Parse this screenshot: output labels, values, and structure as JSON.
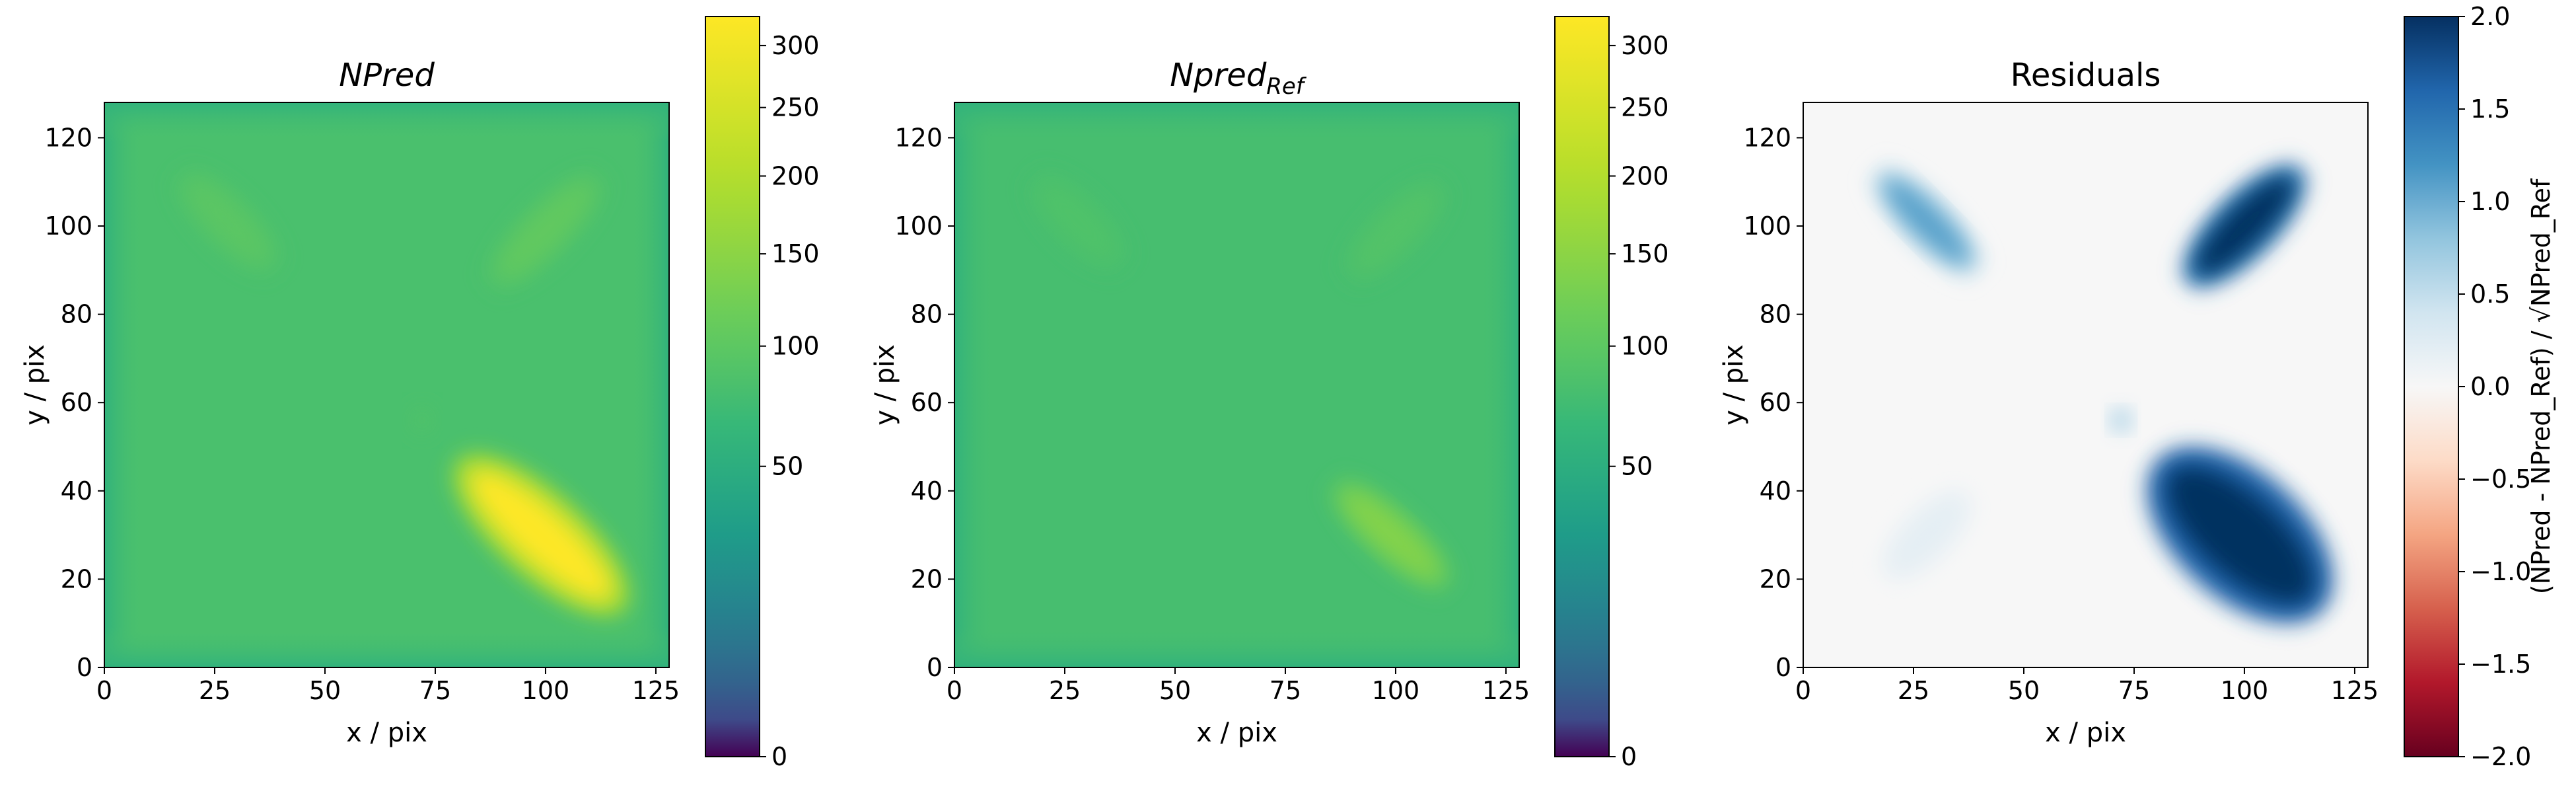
{
  "colors": {
    "viridis": [
      "#440154",
      "#482878",
      "#3e4a89",
      "#31688e",
      "#26828e",
      "#1f9e89",
      "#35b779",
      "#6ece58",
      "#b5de2b",
      "#fde725"
    ],
    "rdbu": [
      "#67001f",
      "#b2182b",
      "#d6604d",
      "#f4a582",
      "#fddbc7",
      "#f7f7f7",
      "#d1e5f0",
      "#92c5de",
      "#4393c3",
      "#2166ac",
      "#053061"
    ]
  },
  "chart_data": [
    {
      "type": "heatmap",
      "title": "NPred",
      "title_italic": true,
      "xlabel": "x / pix",
      "ylabel": "y / pix",
      "xlim": [
        0,
        128
      ],
      "ylim": [
        0,
        128
      ],
      "xticks": [
        "0",
        "25",
        "50",
        "75",
        "100",
        "125"
      ],
      "yticks": [
        "0",
        "20",
        "40",
        "60",
        "80",
        "100",
        "120"
      ],
      "colormap": "viridis",
      "colorbar": {
        "scale": "sqrt",
        "range": [
          0,
          325
        ],
        "ticks": [
          "0",
          "50",
          "100",
          "150",
          "200",
          "250",
          "300"
        ],
        "label": ""
      },
      "background_level": 163,
      "edge_level": 135,
      "blobs": [
        {
          "x": 99,
          "y": 30,
          "angle_deg": -42,
          "length": 22,
          "width": 6,
          "level": 325
        },
        {
          "x": 100,
          "y": 99,
          "angle_deg": 45,
          "length": 15,
          "width": 3.5,
          "level": 185
        },
        {
          "x": 28,
          "y": 101,
          "angle_deg": -45,
          "length": 13,
          "width": 3.5,
          "level": 178
        },
        {
          "x": 72,
          "y": 56,
          "angle_deg": 0,
          "length": 2,
          "width": 2,
          "level": 168
        }
      ]
    },
    {
      "type": "heatmap",
      "title": "Npred",
      "title_subscript": "Ref",
      "title_italic": true,
      "xlabel": "x / pix",
      "ylabel": "y / pix",
      "xlim": [
        0,
        128
      ],
      "ylim": [
        0,
        128
      ],
      "xticks": [
        "0",
        "25",
        "50",
        "75",
        "100",
        "125"
      ],
      "yticks": [
        "0",
        "20",
        "40",
        "60",
        "80",
        "100",
        "120"
      ],
      "colormap": "viridis",
      "colorbar": {
        "scale": "sqrt",
        "range": [
          0,
          325
        ],
        "ticks": [
          "0",
          "50",
          "100",
          "150",
          "200",
          "250",
          "300"
        ],
        "label": ""
      },
      "background_level": 160,
      "edge_level": 135,
      "blobs": [
        {
          "x": 99,
          "y": 30,
          "angle_deg": -42,
          "length": 15,
          "width": 3.5,
          "level": 215
        },
        {
          "x": 100,
          "y": 99,
          "angle_deg": 45,
          "length": 13,
          "width": 3.5,
          "level": 170
        },
        {
          "x": 28,
          "y": 101,
          "angle_deg": -45,
          "length": 12,
          "width": 3.5,
          "level": 168
        }
      ]
    },
    {
      "type": "heatmap",
      "title": "Residuals",
      "title_italic": false,
      "xlabel": "x / pix",
      "ylabel": "y / pix",
      "xlim": [
        0,
        128
      ],
      "ylim": [
        0,
        128
      ],
      "xticks": [
        "0",
        "25",
        "50",
        "75",
        "100",
        "125"
      ],
      "yticks": [
        "0",
        "20",
        "40",
        "60",
        "80",
        "100",
        "120"
      ],
      "colormap": "RdBu",
      "colorbar": {
        "scale": "linear",
        "range": [
          -2,
          2
        ],
        "ticks": [
          "2.0",
          "1.5",
          "1.0",
          "0.5",
          "0.0",
          "−0.5",
          "−1.0",
          "−1.5",
          "−2.0"
        ],
        "label": "(NPred - NPred_Ref) / √NPred_Ref"
      },
      "background_level": 0,
      "blobs": [
        {
          "x": 99,
          "y": 30,
          "angle_deg": -42,
          "length": 22,
          "width": 9,
          "level": 3.2
        },
        {
          "x": 100,
          "y": 100,
          "angle_deg": 45,
          "length": 16,
          "width": 4.5,
          "level": 2.8
        },
        {
          "x": 28,
          "y": 101,
          "angle_deg": -45,
          "length": 14,
          "width": 3.5,
          "level": 1.1
        },
        {
          "x": 72,
          "y": 56,
          "angle_deg": 0,
          "length": 2,
          "width": 2,
          "level": 0.7
        },
        {
          "x": 28,
          "y": 30,
          "angle_deg": 45,
          "length": 12,
          "width": 4,
          "level": 0.2
        }
      ]
    }
  ]
}
